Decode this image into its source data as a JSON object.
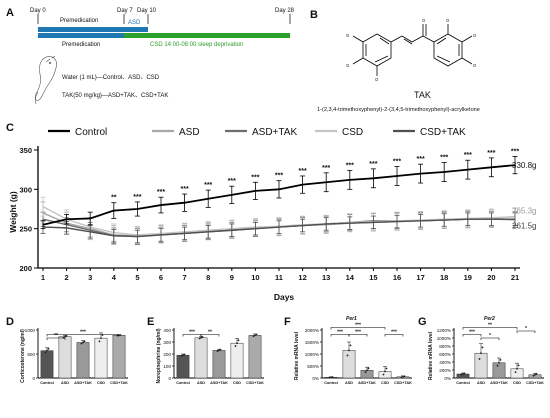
{
  "panels": {
    "a": "A",
    "b": "B",
    "c": "C",
    "d": "D",
    "e": "E",
    "f": "F",
    "g": "G"
  },
  "timeline": {
    "day0": "Day 0",
    "day7": "Day 7",
    "day10": "Day 10",
    "day28": "Day 28",
    "row1_label": "Premedication",
    "row1_asd": "ASD",
    "row2_label": "Premedication",
    "row2_csd": "CSD 14:00-08:00 sleep deprivation",
    "water_line": "Water (1 mL)—Control、ASD、CSD",
    "tak_line": "TAK(50 mg/kg)—ASD+TAK、CSD+TAK",
    "colors": {
      "blue": "#1f77b4",
      "green": "#2ca02c"
    }
  },
  "structure": {
    "name": "TAK",
    "iupac": "1-(2,3,4-trimethoxyphenyl)-2-(3,4,5-trimethoxyphenyl)-acrylketone"
  },
  "chart_data": [
    {
      "id": "C",
      "type": "line",
      "title": "",
      "xlabel": "Days",
      "ylabel": "Weight (g)",
      "xlim": [
        1,
        21
      ],
      "ylim": [
        200,
        350
      ],
      "yticks": [
        200,
        250,
        300,
        350
      ],
      "x": [
        1,
        2,
        3,
        4,
        5,
        6,
        7,
        8,
        9,
        10,
        11,
        12,
        13,
        14,
        15,
        16,
        17,
        18,
        19,
        20,
        21
      ],
      "legend": [
        "Control",
        "ASD",
        "ASD+TAK",
        "CSD",
        "CSD+TAK"
      ],
      "series": [
        {
          "name": "Control",
          "color": "#000000",
          "values": [
            255,
            262,
            263,
            273,
            275,
            280,
            283,
            288,
            293,
            298,
            300,
            306,
            309,
            312,
            314,
            317,
            320,
            322,
            325,
            328,
            330.8
          ],
          "err": [
            5,
            6,
            8,
            10,
            9,
            10,
            11,
            11,
            11,
            11,
            11,
            11,
            12,
            12,
            12,
            12,
            12,
            12,
            12,
            12,
            11
          ]
        },
        {
          "name": "ASD",
          "color": "#a8a8a8",
          "values": [
            270,
            257,
            250,
            242,
            241,
            243,
            245,
            247,
            249,
            251,
            252,
            254,
            255,
            257,
            258,
            259,
            260,
            261,
            262,
            263,
            265.3
          ],
          "err": [
            14,
            14,
            14,
            12,
            11,
            11,
            11,
            11,
            11,
            11,
            11,
            11,
            11,
            11,
            11,
            11,
            11,
            11,
            11,
            11,
            11
          ]
        },
        {
          "name": "ASD+TAK",
          "color": "#6e6e6e",
          "values": [
            262,
            255,
            248,
            241,
            240,
            242,
            244,
            246,
            248,
            250,
            252,
            254,
            256,
            258,
            260,
            260,
            260,
            261,
            262,
            262,
            261.5
          ],
          "err": [
            9,
            9,
            10,
            10,
            10,
            10,
            10,
            10,
            10,
            10,
            10,
            10,
            10,
            10,
            10,
            10,
            10,
            10,
            10,
            10,
            10
          ]
        },
        {
          "name": "CSD",
          "color": "#c4c4c4",
          "values": [
            278,
            262,
            252,
            245,
            242,
            244,
            246,
            248,
            250,
            252,
            253,
            255,
            256,
            258,
            259,
            260,
            261,
            262,
            263,
            264,
            265
          ],
          "err": [
            12,
            12,
            12,
            11,
            11,
            11,
            11,
            11,
            11,
            11,
            11,
            11,
            11,
            11,
            11,
            11,
            11,
            11,
            11,
            11,
            11
          ]
        },
        {
          "name": "CSD+TAK",
          "color": "#505050",
          "values": [
            252,
            251,
            246,
            241,
            240,
            242,
            244,
            246,
            248,
            250,
            252,
            254,
            256,
            257,
            258,
            259,
            260,
            261,
            262,
            262,
            262
          ],
          "err": [
            8,
            8,
            8,
            8,
            8,
            8,
            8,
            8,
            8,
            8,
            8,
            8,
            8,
            8,
            8,
            8,
            8,
            8,
            8,
            8,
            8
          ]
        }
      ],
      "stars": [
        "",
        "",
        "",
        "**",
        "***",
        "***",
        "***",
        "***",
        "***",
        "***",
        "***",
        "***",
        "***",
        "***",
        "***",
        "***",
        "***",
        "***",
        "***",
        "***",
        "***"
      ],
      "end_labels": [
        "330.8g",
        "265.3g",
        "261.5g"
      ]
    },
    {
      "id": "D",
      "type": "bar",
      "ylabel": "Corticosterone (ng/ml)",
      "categories": [
        "Control",
        "ASD",
        "ASD+TAK",
        "CSD",
        "CSD+TAK"
      ],
      "values": [
        570,
        860,
        740,
        830,
        890
      ],
      "err": [
        60,
        30,
        40,
        110,
        10
      ],
      "ylim": [
        0,
        1000
      ],
      "yticks": [
        0,
        500,
        1000
      ],
      "colors": [
        "#555555",
        "#dddddd",
        "#999999",
        "#eeeeee",
        "#aaaaaa"
      ],
      "brackets": [
        {
          "from": 0,
          "to": 1,
          "label": "**",
          "level": 0
        },
        {
          "from": 0,
          "to": 4,
          "label": "***",
          "level": 1
        }
      ]
    },
    {
      "id": "E",
      "type": "bar",
      "ylabel": "Norepinephrine (ng/ml)",
      "categories": [
        "Control",
        "ASD",
        "ASD+TAK",
        "CSD",
        "CSD+TAK"
      ],
      "values": [
        190,
        335,
        230,
        290,
        355
      ],
      "err": [
        10,
        10,
        10,
        40,
        12
      ],
      "ylim": [
        0,
        400
      ],
      "yticks": [
        0,
        100,
        200,
        300,
        400
      ],
      "colors": [
        "#555555",
        "#dddddd",
        "#999999",
        "#eeeeee",
        "#aaaaaa"
      ],
      "brackets": [
        {
          "from": 0,
          "to": 1,
          "label": "***",
          "level": 1
        },
        {
          "from": 1,
          "to": 2,
          "label": "**",
          "level": 1
        }
      ]
    },
    {
      "id": "F",
      "type": "bar",
      "gene": "Per1",
      "ylabel": "Relative mRNA level",
      "categories": [
        "Control",
        "ASD",
        "ASD+TAK",
        "CSD",
        "CSD+TAK"
      ],
      "values": [
        30,
        1150,
        320,
        270,
        50
      ],
      "err": [
        20,
        350,
        130,
        210,
        40
      ],
      "ylim": [
        0,
        2000
      ],
      "yticks": [
        0,
        500,
        1000,
        1500,
        2000
      ],
      "yticklabels": [
        "0%",
        "500%",
        "1000%",
        "1500%",
        "2000%"
      ],
      "colors": [
        "#555555",
        "#dddddd",
        "#999999",
        "#eeeeee",
        "#aaaaaa"
      ],
      "brackets": [
        {
          "from": 0,
          "to": 1,
          "label": "***",
          "level": 1
        },
        {
          "from": 1,
          "to": 2,
          "label": "***",
          "level": 1
        },
        {
          "from": 3,
          "to": 4,
          "label": "***",
          "level": 1
        },
        {
          "from": 0,
          "to": 3,
          "label": "***",
          "level": 3
        }
      ]
    },
    {
      "id": "G",
      "type": "bar",
      "gene": "Per2",
      "ylabel": "Relative mRNA level",
      "categories": [
        "Control",
        "ASD",
        "ASD+TAK",
        "CSD",
        "CSD+TAK"
      ],
      "values": [
        100,
        620,
        380,
        230,
        80
      ],
      "err": [
        25,
        240,
        120,
        140,
        40
      ],
      "ylim": [
        0,
        1200
      ],
      "yticks": [
        0,
        200,
        400,
        600,
        800,
        1000,
        1200
      ],
      "yticklabels": [
        "0%",
        "200%",
        "400%",
        "600%",
        "800%",
        "1000%",
        "1200%"
      ],
      "colors": [
        "#555555",
        "#dddddd",
        "#999999",
        "#eeeeee",
        "#aaaaaa"
      ],
      "brackets": [
        {
          "from": 0,
          "to": 1,
          "label": "***",
          "level": 1
        },
        {
          "from": 1,
          "to": 2,
          "label": "*",
          "level": 0
        },
        {
          "from": 3,
          "to": 4,
          "label": "*",
          "level": 2
        },
        {
          "from": 0,
          "to": 3,
          "label": "**",
          "level": 3
        }
      ]
    }
  ]
}
